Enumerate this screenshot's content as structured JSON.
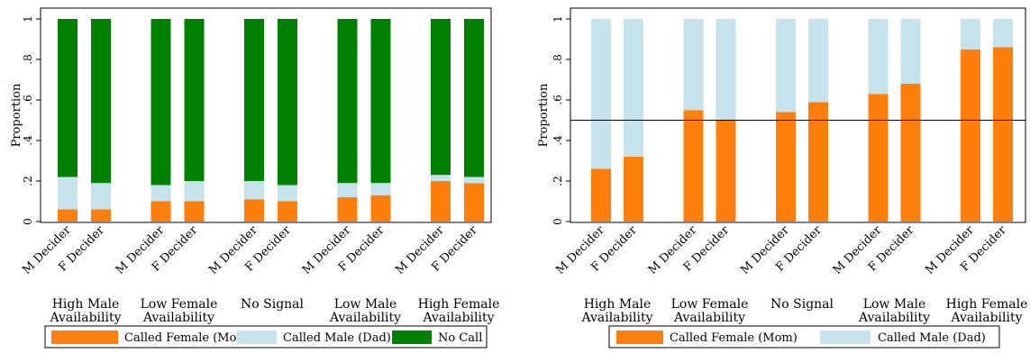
{
  "colors": {
    "female": "#ff7f0e",
    "male": "#c6e2ea",
    "nocall": "#008000",
    "axis": "#000000",
    "refline": "#000000"
  },
  "legend_labels": {
    "female": "Called Female (Mom)",
    "male": "Called Male (Dad)",
    "nocall": "No Call"
  },
  "chart_data": [
    {
      "type": "bar",
      "stacked": true,
      "ylabel": "Proportion",
      "ylim": [
        0,
        1
      ],
      "yticks": [
        "0",
        ".2",
        ".4",
        ".6",
        ".8",
        "1"
      ],
      "groups": [
        {
          "label_lines": [
            "High Male",
            "Availability"
          ],
          "bars": [
            {
              "label": "M Decider",
              "female": 0.06,
              "male": 0.16,
              "nocall": 0.78
            },
            {
              "label": "F Decider",
              "female": 0.06,
              "male": 0.13,
              "nocall": 0.81
            }
          ]
        },
        {
          "label_lines": [
            "Low Female",
            "Availability"
          ],
          "bars": [
            {
              "label": "M Decider",
              "female": 0.1,
              "male": 0.08,
              "nocall": 0.82
            },
            {
              "label": "F Decider",
              "female": 0.1,
              "male": 0.1,
              "nocall": 0.8
            }
          ]
        },
        {
          "label_lines": [
            "No Signal",
            ""
          ],
          "bars": [
            {
              "label": "M Decider",
              "female": 0.11,
              "male": 0.09,
              "nocall": 0.8
            },
            {
              "label": "F Decider",
              "female": 0.1,
              "male": 0.08,
              "nocall": 0.82
            }
          ]
        },
        {
          "label_lines": [
            "Low Male",
            "Availability"
          ],
          "bars": [
            {
              "label": "M Decider",
              "female": 0.12,
              "male": 0.07,
              "nocall": 0.81
            },
            {
              "label": "F Decider",
              "female": 0.13,
              "male": 0.06,
              "nocall": 0.81
            }
          ]
        },
        {
          "label_lines": [
            "High Female",
            "Availability"
          ],
          "bars": [
            {
              "label": "M Decider",
              "female": 0.2,
              "male": 0.03,
              "nocall": 0.77
            },
            {
              "label": "F Decider",
              "female": 0.19,
              "male": 0.03,
              "nocall": 0.78
            }
          ]
        }
      ],
      "legend": [
        "Called Female (Mom)",
        "Called Male (Dad)",
        "No Call"
      ]
    },
    {
      "type": "bar",
      "stacked": true,
      "ylabel": "Proportion",
      "ylim": [
        0,
        1
      ],
      "yticks": [
        "0",
        ".2",
        ".4",
        ".6",
        ".8",
        "1"
      ],
      "reference_line": 0.5,
      "groups": [
        {
          "label_lines": [
            "High Male",
            "Availability"
          ],
          "bars": [
            {
              "label": "M Decider",
              "female": 0.26,
              "male": 0.74
            },
            {
              "label": "F Decider",
              "female": 0.32,
              "male": 0.68
            }
          ]
        },
        {
          "label_lines": [
            "Low Female",
            "Availability"
          ],
          "bars": [
            {
              "label": "M Decider",
              "female": 0.55,
              "male": 0.45
            },
            {
              "label": "F Decider",
              "female": 0.5,
              "male": 0.5
            }
          ]
        },
        {
          "label_lines": [
            "No Signal",
            ""
          ],
          "bars": [
            {
              "label": "M Decider",
              "female": 0.54,
              "male": 0.46
            },
            {
              "label": "F Decider",
              "female": 0.59,
              "male": 0.41
            }
          ]
        },
        {
          "label_lines": [
            "Low Male",
            "Availability"
          ],
          "bars": [
            {
              "label": "M Decider",
              "female": 0.63,
              "male": 0.37
            },
            {
              "label": "F Decider",
              "female": 0.68,
              "male": 0.32
            }
          ]
        },
        {
          "label_lines": [
            "High Female",
            "Availability"
          ],
          "bars": [
            {
              "label": "M Decider",
              "female": 0.85,
              "male": 0.15
            },
            {
              "label": "F Decider",
              "female": 0.86,
              "male": 0.14
            }
          ]
        }
      ],
      "legend": [
        "Called Female (Mom)",
        "Called Male (Dad)"
      ]
    }
  ]
}
